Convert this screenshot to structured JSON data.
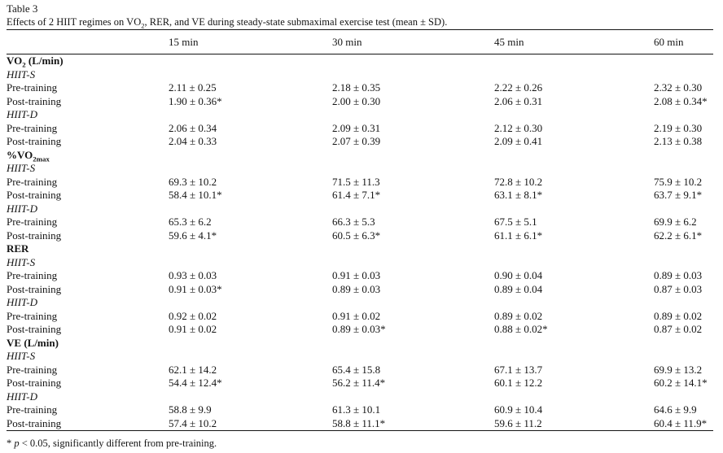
{
  "colors": {
    "text": "#141414",
    "background": "#ffffff",
    "rule": "#141414"
  },
  "page": {
    "label": "Table 3",
    "caption": {
      "pre": "Effects of 2 HIIT regimes on VO",
      "sub": "2",
      "post": ", RER, and VE during steady-state submaximal exercise test (mean ± SD)."
    },
    "footnote": {
      "star": "* ",
      "p": "p",
      "rest": " < 0.05, significantly different from pre-training."
    }
  },
  "table": {
    "columns": [
      "15 min",
      "30 min",
      "45 min",
      "60 min"
    ],
    "sections": [
      {
        "title": {
          "main": "VO",
          "sub": "2",
          "rest": " (L/min)"
        },
        "groups": [
          {
            "name": "HIIT-S",
            "rows": [
              {
                "label": "Pre-training",
                "values": [
                  "2.11 ± 0.25",
                  "2.18 ± 0.35",
                  "2.22 ± 0.26",
                  "2.32 ± 0.30"
                ]
              },
              {
                "label": "Post-training",
                "values": [
                  "1.90 ± 0.36*",
                  "2.00 ± 0.30",
                  "2.06 ± 0.31",
                  "2.08 ± 0.34*"
                ]
              }
            ]
          },
          {
            "name": "HIIT-D",
            "rows": [
              {
                "label": "Pre-training",
                "values": [
                  "2.06 ± 0.34",
                  "2.09 ± 0.31",
                  "2.12 ± 0.30",
                  "2.19 ± 0.30"
                ]
              },
              {
                "label": "Post-training",
                "values": [
                  "2.04 ± 0.33",
                  "2.07 ± 0.39",
                  "2.09 ± 0.41",
                  "2.13 ± 0.38"
                ]
              }
            ]
          }
        ]
      },
      {
        "title": {
          "main": "%VO",
          "sub": "2max",
          "rest": ""
        },
        "groups": [
          {
            "name": "HIIT-S",
            "rows": [
              {
                "label": "Pre-training",
                "values": [
                  "69.3 ± 10.2",
                  "71.5 ± 11.3",
                  "72.8 ± 10.2",
                  "75.9 ± 10.2"
                ]
              },
              {
                "label": "Post-training",
                "values": [
                  "58.4 ± 10.1*",
                  "61.4 ± 7.1*",
                  "63.1 ± 8.1*",
                  "63.7 ± 9.1*"
                ]
              }
            ]
          },
          {
            "name": "HIIT-D",
            "rows": [
              {
                "label": "Pre-training",
                "values": [
                  "65.3 ± 6.2",
                  "66.3 ± 5.3",
                  "67.5 ± 5.1",
                  "69.9 ± 6.2"
                ]
              },
              {
                "label": "Post-training",
                "values": [
                  "59.6 ± 4.1*",
                  "60.5 ± 6.3*",
                  "61.1 ± 6.1*",
                  "62.2 ± 6.1*"
                ]
              }
            ]
          }
        ]
      },
      {
        "title": {
          "main": "RER",
          "sub": "",
          "rest": ""
        },
        "groups": [
          {
            "name": "HIIT-S",
            "rows": [
              {
                "label": "Pre-training",
                "values": [
                  "0.93 ± 0.03",
                  "0.91 ± 0.03",
                  "0.90 ± 0.04",
                  "0.89 ± 0.03"
                ]
              },
              {
                "label": "Post-training",
                "values": [
                  "0.91 ± 0.03*",
                  "0.89 ± 0.03",
                  "0.89 ± 0.04",
                  "0.87 ± 0.03"
                ]
              }
            ]
          },
          {
            "name": "HIIT-D",
            "rows": [
              {
                "label": "Pre-training",
                "values": [
                  "0.92 ± 0.02",
                  "0.91 ± 0.02",
                  "0.89 ± 0.02",
                  "0.89 ± 0.02"
                ]
              },
              {
                "label": "Post-training",
                "values": [
                  "0.91 ± 0.02",
                  "0.89 ± 0.03*",
                  "0.88 ± 0.02*",
                  "0.87 ± 0.02"
                ]
              }
            ]
          }
        ]
      },
      {
        "title": {
          "main": "VE",
          "sub": "",
          "rest": " (L/min)"
        },
        "groups": [
          {
            "name": "HIIT-S",
            "rows": [
              {
                "label": "Pre-training",
                "values": [
                  "62.1 ± 14.2",
                  "65.4 ± 15.8",
                  "67.1 ± 13.7",
                  "69.9 ± 13.2"
                ]
              },
              {
                "label": "Post-training",
                "values": [
                  "54.4 ± 12.4*",
                  "56.2 ± 11.4*",
                  "60.1 ± 12.2",
                  "60.2 ± 14.1*"
                ]
              }
            ]
          },
          {
            "name": "HIIT-D",
            "rows": [
              {
                "label": "Pre-training",
                "values": [
                  "58.8 ± 9.9",
                  "61.3 ± 10.1",
                  "60.9 ± 10.4",
                  "64.6 ± 9.9"
                ]
              },
              {
                "label": "Post-training",
                "values": [
                  "57.4 ± 10.2",
                  "58.8 ± 11.1*",
                  "59.6 ± 11.2",
                  "60.4 ± 11.9*"
                ]
              }
            ]
          }
        ]
      }
    ]
  }
}
